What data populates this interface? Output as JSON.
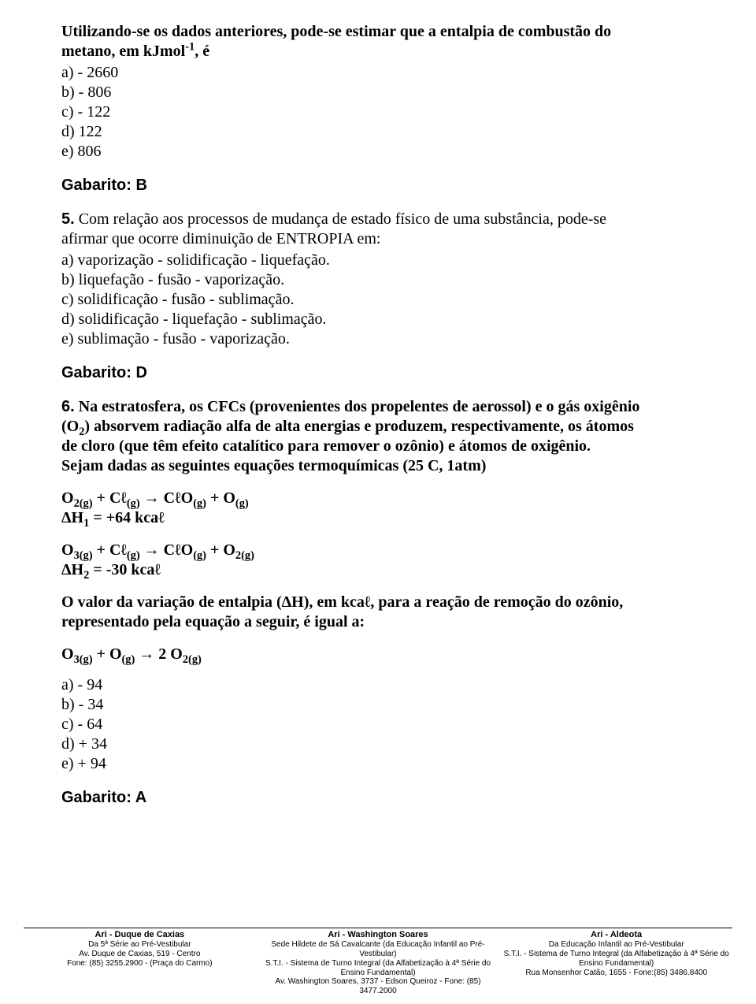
{
  "q4": {
    "intro_line1": "Utilizando-se os dados anteriores, pode-se estimar que a entalpia de combustão do",
    "intro_line2_prefix": "metano, em kJmol",
    "intro_line2_sup": "-1",
    "intro_line2_suffix": ", é",
    "opts": {
      "a": "a) - 2660",
      "b": "b) - 806",
      "c": "c) - 122",
      "d": "d) 122",
      "e": "e) 806"
    },
    "gabarito": "Gabarito: B"
  },
  "q5": {
    "num": "5.",
    "intro_l1": " Com relação aos processos de mudança de estado físico de uma substância, pode-se",
    "intro_l2": "afirmar que ocorre diminuição de ENTROPIA em:",
    "opts": {
      "a": "a) vaporização - solidificação - liquefação.",
      "b": "b) liquefação - fusão - vaporização.",
      "c": "c) solidificação - fusão - sublimação.",
      "d": "d) solidificação - liquefação - sublimação.",
      "e": "e) sublimação - fusão - vaporização."
    },
    "gabarito": "Gabarito: D"
  },
  "q6": {
    "num": "6.",
    "p1_l1": " Na estratosfera, os CFCs (provenientes dos propelentes de aerossol) e o gás oxigênio",
    "p1_l2_pre": "(O",
    "p1_l2_sub": "2",
    "p1_l2_post": ") absorvem radiação alfa de alta energias e produzem, respectivamente, os átomos",
    "p1_l3": "de cloro (que têm efeito catalítico para remover o ozônio) e átomos de oxigênio.",
    "p1_l4": "Sejam dadas as seguintes equações termoquímicas (25 C, 1atm)",
    "eq1_lhs_1": "O",
    "eq1_lhs_1sub": "2(g)",
    "eq1_plus1": " + C",
    "eq1_script_l": "ℓ",
    "eq1_lhs_2sub": "(g)",
    "eq1_arrow": " → C",
    "eq1_rhs_1": "O",
    "eq1_rhs_1sub": "(g)",
    "eq1_plus2": " + O",
    "eq1_rhs_2sub": "(g)",
    "dh1_pre": "ΔH",
    "dh1_sub": "1",
    "dh1_post": " = +64 kca",
    "dh1_l": "ℓ",
    "eq2_lhs_1": "O",
    "eq2_lhs_1sub": "3(g)",
    "eq2_rhs_2sub": "2(g)",
    "dh2_pre": "ΔH",
    "dh2_sub": "2",
    "dh2_post": " = -30 kca",
    "dh2_l": "ℓ",
    "p2_l1_pre": "O valor da variação de entalpia (ΔH), em kca",
    "p2_l1_l": "ℓ",
    "p2_l1_post": ", para a reação de remoção do ozônio,",
    "p2_l2": "representado pela equação a seguir, é igual a:",
    "feq_l": "O",
    "feq_lsub": "3(g)",
    "feq_plus": " + O",
    "feq_msub": "(g)",
    "feq_arrow": " → 2 O",
    "feq_rsub": "2(g)",
    "opts": {
      "a": "a) - 94",
      "b": "b) - 34",
      "c": "c) - 64",
      "d": "d) + 34",
      "e": "e) + 94"
    },
    "gabarito": "Gabarito: A"
  },
  "footer": {
    "col1": {
      "title": "Ari - Duque de Caxias",
      "l1": "Da 5ª Série ao Pré-Vestibular",
      "l2": "Av. Duque de Caxias, 519 - Centro",
      "l3": "Fone: (85) 3255.2900 - (Praça do Carmo)"
    },
    "col2": {
      "title": "Ari - Washington Soares",
      "l1": "Sede Hildete de Sá Cavalcante (da Educação Infantil ao Pré-Vestibular)",
      "l2": "S.T.I. - Sistema de Turno Integral (da Alfabetização à 4ª Série do Ensino Fundamental)",
      "l3": "Av. Washington Soares, 3737 - Edson Queiroz - Fone: (85) 3477.2000"
    },
    "col3": {
      "title": "Ari - Aldeota",
      "l1": "Da Educação Infantil ao Pré-Vestibular",
      "l2": "S.T.I. - Sistema de Turno Integral (da Alfabetização à 4ª Série do Ensino Fundamental)",
      "l3": "Rua Monsenhor Catão, 1655 - Fone:(85) 3486.8400"
    }
  }
}
